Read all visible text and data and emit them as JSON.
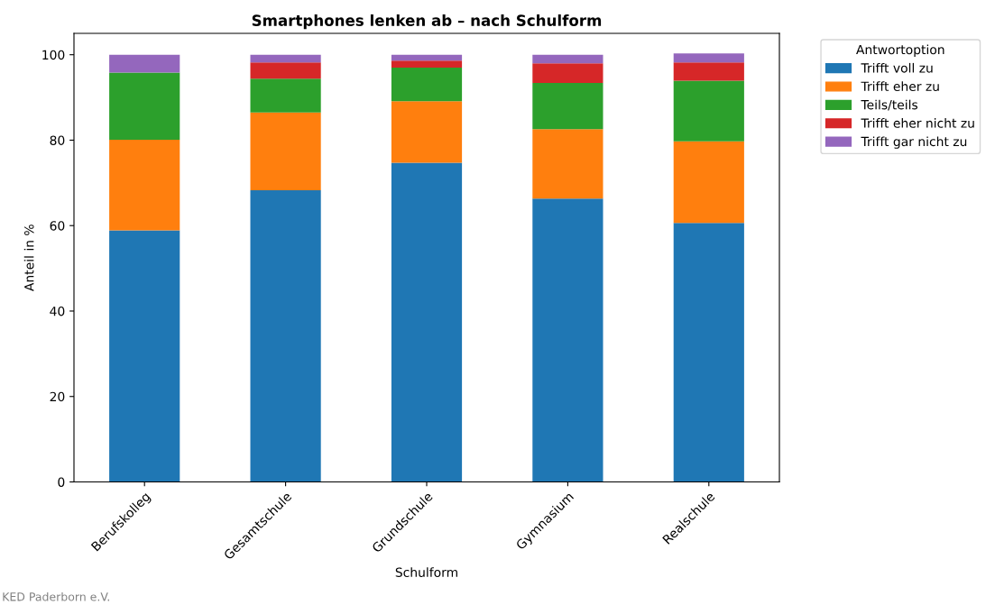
{
  "chart_data": {
    "type": "bar",
    "stacked": true,
    "title": "Smartphones lenken ab – nach Schulform",
    "xlabel": "Schulform",
    "ylabel": "Anteil in %",
    "legend_title": "Antwortoption",
    "legend": "top right",
    "categories": [
      "Berufskolleg",
      "Gesamtschule",
      "Grundschule",
      "Gymnasium",
      "Realschule"
    ],
    "series": [
      {
        "name": "Trifft voll zu",
        "color": "#1f77b4",
        "values": [
          58.9,
          68.3,
          74.7,
          66.3,
          60.6
        ]
      },
      {
        "name": "Trifft eher zu",
        "color": "#ff7f0e",
        "values": [
          21.2,
          18.2,
          14.4,
          16.3,
          19.1
        ]
      },
      {
        "name": "Teils/teils",
        "color": "#2ca02c",
        "values": [
          15.7,
          7.9,
          7.9,
          10.8,
          14.2
        ]
      },
      {
        "name": "Trifft eher nicht zu",
        "color": "#d62728",
        "values": [
          0,
          3.8,
          1.6,
          4.6,
          4.3
        ]
      },
      {
        "name": "Trifft gar nicht zu",
        "color": "#9467bd",
        "values": [
          4.2,
          1.8,
          1.4,
          2.0,
          2.1
        ]
      }
    ],
    "ylim": [
      0,
      105
    ],
    "yticks": [
      0,
      20,
      40,
      60,
      80,
      100
    ],
    "grid": false,
    "annotations": [
      "KED Paderborn e.V."
    ]
  }
}
